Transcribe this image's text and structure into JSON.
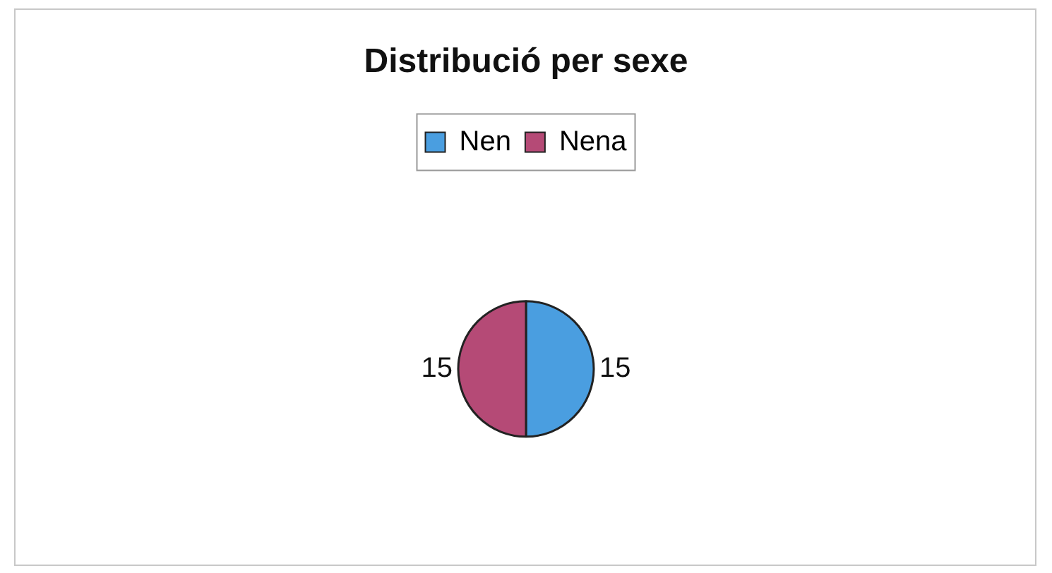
{
  "chart_data": {
    "type": "pie",
    "title": "Distribució per sexe",
    "categories": [
      "Nen",
      "Nena"
    ],
    "values": [
      15,
      15
    ],
    "colors": [
      "#4a9ee0",
      "#b54a76"
    ],
    "legend": "top",
    "data_labels": true
  }
}
